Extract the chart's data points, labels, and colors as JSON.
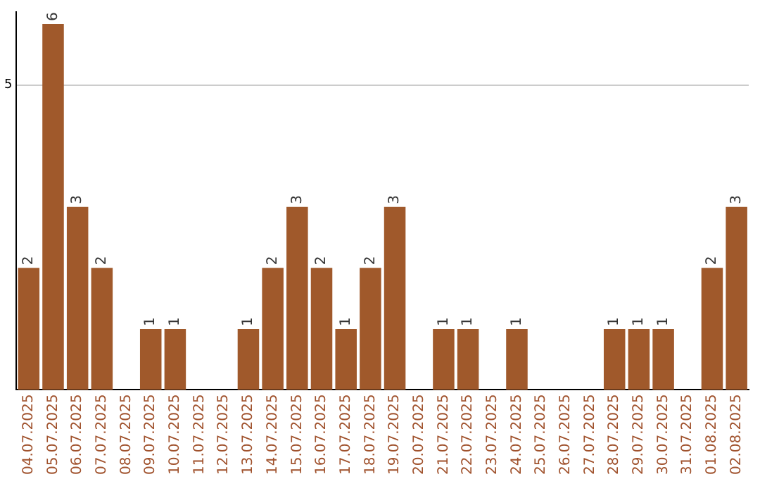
{
  "chart_data": {
    "type": "bar",
    "categories": [
      "04.07.2025",
      "05.07.2025",
      "06.07.2025",
      "07.07.2025",
      "08.07.2025",
      "09.07.2025",
      "10.07.2025",
      "11.07.2025",
      "12.07.2025",
      "13.07.2025",
      "14.07.2025",
      "15.07.2025",
      "16.07.2025",
      "17.07.2025",
      "18.07.2025",
      "19.07.2025",
      "20.07.2025",
      "21.07.2025",
      "22.07.2025",
      "23.07.2025",
      "24.07.2025",
      "25.07.2025",
      "26.07.2025",
      "27.07.2025",
      "28.07.2025",
      "29.07.2025",
      "30.07.2025",
      "31.07.2025",
      "01.08.2025",
      "02.08.2025"
    ],
    "values": [
      2,
      6,
      3,
      2,
      0,
      1,
      1,
      0,
      0,
      1,
      2,
      3,
      2,
      1,
      2,
      3,
      0,
      1,
      1,
      0,
      1,
      0,
      0,
      0,
      1,
      1,
      1,
      0,
      2,
      3
    ],
    "value_labels": [
      "2",
      "6",
      "3",
      "2",
      null,
      "1",
      "1",
      null,
      null,
      "1",
      "2",
      "3",
      "2",
      "1",
      "2",
      "3",
      null,
      "1",
      "1",
      null,
      "1",
      null,
      null,
      null,
      "1",
      "1",
      "1",
      null,
      "2",
      "3"
    ],
    "color": "#a0592b",
    "ylim": [
      0,
      6.2
    ],
    "yticks": [
      5
    ],
    "grid": "y",
    "legend": false
  }
}
